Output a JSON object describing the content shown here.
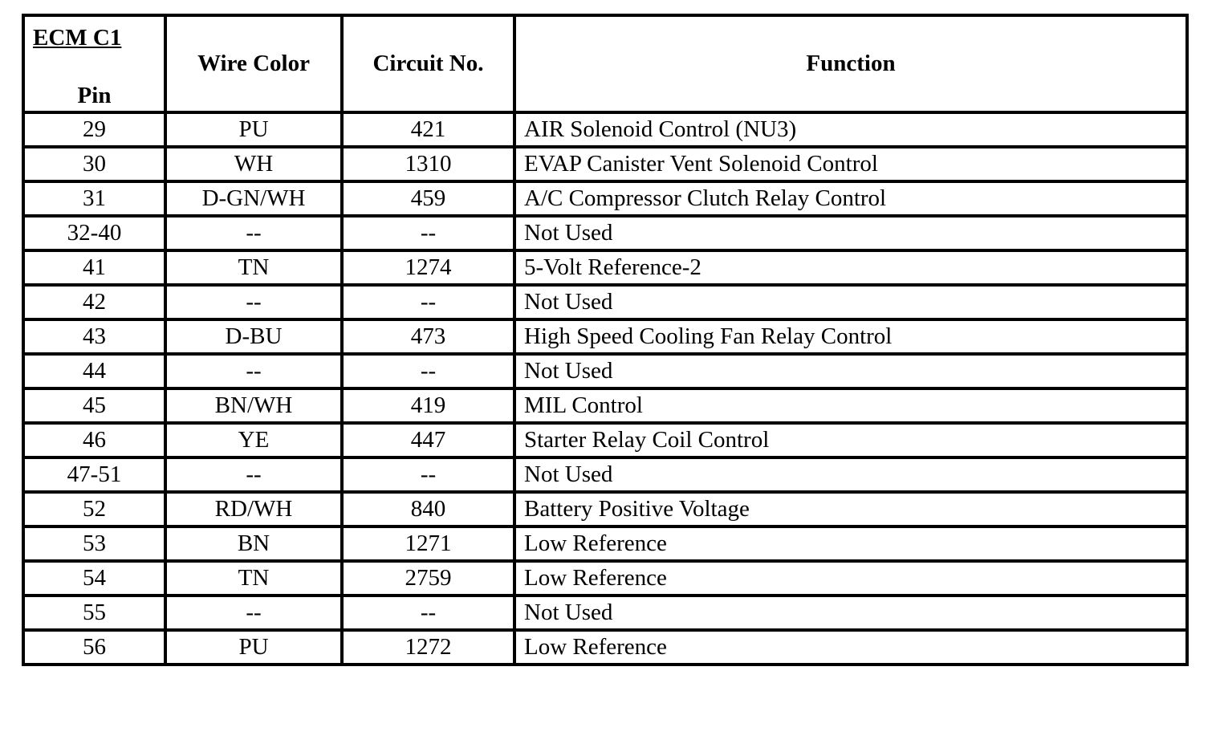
{
  "table": {
    "header": {
      "connector": "ECM C1",
      "pin": "Pin",
      "wire_color": "Wire Color",
      "circuit_no": "Circuit No.",
      "function": "Function"
    },
    "rows": [
      {
        "pin": "29",
        "wire": "PU",
        "circuit": "421",
        "function": "AIR Solenoid Control (NU3)"
      },
      {
        "pin": "30",
        "wire": "WH",
        "circuit": "1310",
        "function": "EVAP Canister Vent Solenoid Control"
      },
      {
        "pin": "31",
        "wire": "D-GN/WH",
        "circuit": "459",
        "function": "A/C Compressor Clutch Relay Control"
      },
      {
        "pin": "32-40",
        "wire": "--",
        "circuit": "--",
        "function": "Not Used"
      },
      {
        "pin": "41",
        "wire": "TN",
        "circuit": "1274",
        "function": "5-Volt Reference-2"
      },
      {
        "pin": "42",
        "wire": "--",
        "circuit": "--",
        "function": "Not Used"
      },
      {
        "pin": "43",
        "wire": "D-BU",
        "circuit": "473",
        "function": "High Speed Cooling Fan Relay Control"
      },
      {
        "pin": "44",
        "wire": "--",
        "circuit": "--",
        "function": "Not Used"
      },
      {
        "pin": "45",
        "wire": "BN/WH",
        "circuit": "419",
        "function": "MIL Control"
      },
      {
        "pin": "46",
        "wire": "YE",
        "circuit": "447",
        "function": "Starter Relay Coil Control"
      },
      {
        "pin": "47-51",
        "wire": "--",
        "circuit": "--",
        "function": "Not Used"
      },
      {
        "pin": "52",
        "wire": "RD/WH",
        "circuit": "840",
        "function": "Battery Positive Voltage"
      },
      {
        "pin": "53",
        "wire": "BN",
        "circuit": "1271",
        "function": "Low Reference"
      },
      {
        "pin": "54",
        "wire": "TN",
        "circuit": "2759",
        "function": "Low Reference"
      },
      {
        "pin": "55",
        "wire": "--",
        "circuit": "--",
        "function": "Not Used"
      },
      {
        "pin": "56",
        "wire": "PU",
        "circuit": "1272",
        "function": "Low Reference"
      }
    ]
  }
}
